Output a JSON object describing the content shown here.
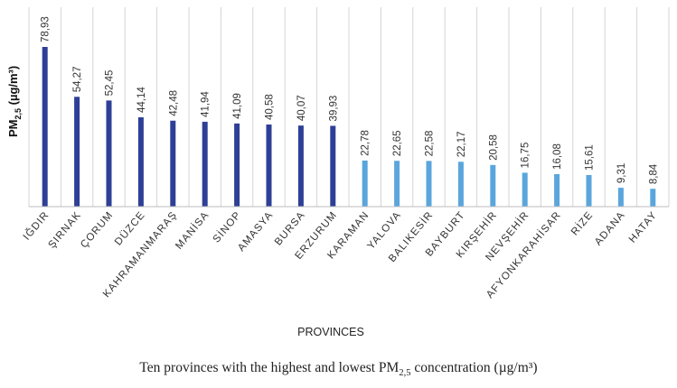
{
  "chart_data": {
    "type": "bar",
    "title": "",
    "xlabel": "PROVINCES",
    "ylabel_main": "PM",
    "ylabel_sub": "2,5",
    "ylabel_unit": " (µg/m³)",
    "categories": [
      "IĞDIR",
      "ŞIRNAK",
      "ÇORUM",
      "DÜZCE",
      "KAHRAMANMARAŞ",
      "MANİSA",
      "SİNOP",
      "AMASYA",
      "BURSA",
      "ERZURUM",
      "KARAMAN",
      "YALOVA",
      "BALIKESİR",
      "BAYBURT",
      "KIRŞEHİR",
      "NEVŞEHİR",
      "AFYONKARAHİSAR",
      "RİZE",
      "ADANA",
      "HATAY"
    ],
    "values": [
      78.93,
      54.27,
      52.45,
      44.14,
      42.48,
      41.94,
      41.09,
      40.58,
      40.07,
      39.93,
      22.78,
      22.65,
      22.58,
      22.17,
      20.58,
      16.75,
      16.08,
      15.61,
      9.31,
      8.84
    ],
    "value_labels": [
      "78,93",
      "54,27",
      "52,45",
      "44,14",
      "42,48",
      "41,94",
      "41,09",
      "40,58",
      "40,07",
      "39,93",
      "22,78",
      "22,65",
      "22,58",
      "22,17",
      "20,58",
      "16,75",
      "16,08",
      "15,61",
      "9,31",
      "8,84"
    ],
    "groups": [
      "high",
      "high",
      "high",
      "high",
      "high",
      "high",
      "high",
      "high",
      "high",
      "high",
      "low",
      "low",
      "low",
      "low",
      "low",
      "low",
      "low",
      "low",
      "low",
      "low"
    ],
    "colors": {
      "high": "#2e3f96",
      "low": "#5aa6dc",
      "grid": "#d4d4d4",
      "axis": "#bdbdbd"
    },
    "ylim": [
      0,
      80
    ],
    "grid": "vertical"
  },
  "caption": {
    "prefix": "Ten provinces with the highest and lowest PM",
    "sub": "2,5",
    "suffix": " concentration (µg/m³)"
  }
}
